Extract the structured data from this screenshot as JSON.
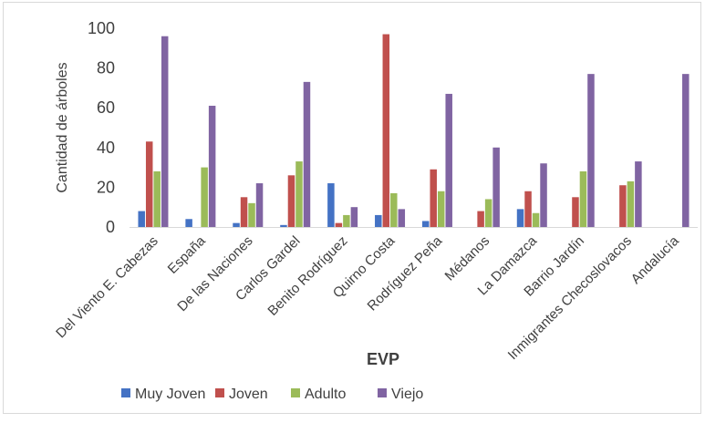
{
  "chart_data": {
    "type": "bar",
    "title": "",
    "xlabel": "EVP",
    "ylabel": "Cantidad  de árboles",
    "ylim": [
      0,
      100
    ],
    "yticks": [
      0,
      20,
      40,
      60,
      80,
      100
    ],
    "grid": false,
    "legend_position": "bottom",
    "categories": [
      "Del Viento E. Cabezas",
      "España",
      "De las Naciones",
      "Carlos Gardel",
      "Benito Rodríguez",
      "Quirno Costa",
      "Rodríguez Peña",
      "Médanos",
      "La Damazca",
      "Barrio Jardín",
      "Inmigrantes Checoslovacos",
      "Andalucía"
    ],
    "series": [
      {
        "name": "Muy Joven",
        "color": "#4472c4",
        "values": [
          8,
          4,
          2,
          1,
          22,
          6,
          3,
          0,
          9,
          0,
          0,
          0
        ]
      },
      {
        "name": "Joven",
        "color": "#c0504d",
        "values": [
          43,
          0,
          15,
          26,
          2,
          97,
          29,
          8,
          18,
          15,
          21,
          0
        ]
      },
      {
        "name": "Adulto",
        "color": "#9bbb59",
        "values": [
          28,
          30,
          12,
          33,
          6,
          17,
          18,
          14,
          7,
          28,
          23,
          0
        ]
      },
      {
        "name": "Viejo",
        "color": "#8064a2",
        "values": [
          96,
          61,
          22,
          73,
          10,
          9,
          67,
          40,
          32,
          77,
          33,
          77
        ]
      }
    ]
  }
}
